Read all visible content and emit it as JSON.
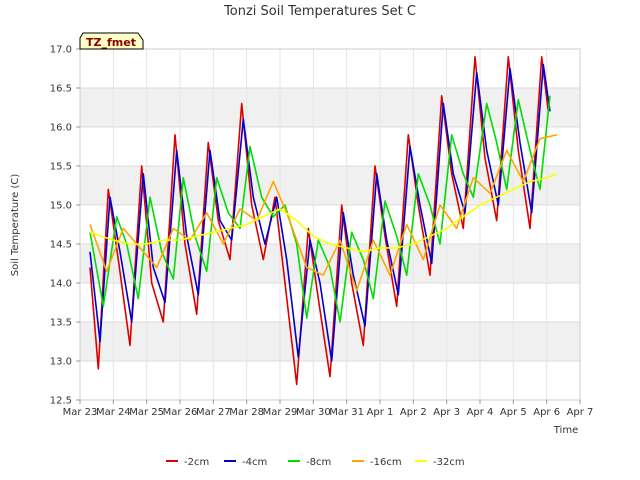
{
  "chart_data": {
    "type": "line",
    "title": "Tonzi Soil Temperatures Set C",
    "xlabel": "Time",
    "ylabel": "Soil Temperature (C)",
    "badge": "TZ_fmet",
    "xlim": [
      0,
      15
    ],
    "ylim": [
      12.5,
      17.0
    ],
    "x_ticks": [
      0,
      1,
      2,
      3,
      4,
      5,
      6,
      7,
      8,
      9,
      10,
      11,
      12,
      13,
      14,
      15
    ],
    "x_tick_labels": [
      "Mar 23",
      "Mar 24",
      "Mar 25",
      "Mar 26",
      "Mar 27",
      "Mar 28",
      "Mar 29",
      "Mar 30",
      "Mar 31",
      "Apr 1",
      "Apr 2",
      "Apr 3",
      "Apr 4",
      "Apr 5",
      "Apr 6",
      "Apr 7"
    ],
    "y_ticks": [
      12.5,
      13.0,
      13.5,
      14.0,
      14.5,
      15.0,
      15.5,
      16.0,
      16.5,
      17.0
    ],
    "y_tick_labels": [
      "12.5",
      "13.0",
      "13.5",
      "14.0",
      "14.5",
      "15.0",
      "15.5",
      "16.0",
      "16.5",
      "17.0"
    ],
    "grid": true,
    "legend_position": "bottom",
    "series": [
      {
        "name": "-2cm",
        "color": "#dd0000",
        "x": [
          0.3,
          0.55,
          0.85,
          1.15,
          1.5,
          1.85,
          2.15,
          2.5,
          2.85,
          3.15,
          3.5,
          3.85,
          4.15,
          4.5,
          4.85,
          5.15,
          5.5,
          5.85,
          6.15,
          6.5,
          6.85,
          7.15,
          7.5,
          7.85,
          8.15,
          8.5,
          8.85,
          9.15,
          9.5,
          9.85,
          10.15,
          10.5,
          10.85,
          11.15,
          11.5,
          11.85,
          12.15,
          12.5,
          12.85,
          13.15,
          13.5,
          13.85,
          14.05
        ],
        "y": [
          14.2,
          12.9,
          15.2,
          14.3,
          13.2,
          15.5,
          14.0,
          13.5,
          15.9,
          14.5,
          13.6,
          15.8,
          14.8,
          14.3,
          16.3,
          15.0,
          14.3,
          15.1,
          14.0,
          12.7,
          14.7,
          13.8,
          12.8,
          15.0,
          14.0,
          13.2,
          15.5,
          14.6,
          13.7,
          15.9,
          15.0,
          14.1,
          16.4,
          15.4,
          14.7,
          16.9,
          15.6,
          14.8,
          16.9,
          15.7,
          14.7,
          16.9,
          16.2
        ]
      },
      {
        "name": "-4cm",
        "color": "#0000cc",
        "x": [
          0.3,
          0.6,
          0.9,
          1.2,
          1.55,
          1.9,
          2.2,
          2.55,
          2.9,
          3.2,
          3.55,
          3.9,
          4.2,
          4.55,
          4.9,
          5.2,
          5.55,
          5.9,
          6.2,
          6.55,
          6.9,
          7.2,
          7.55,
          7.9,
          8.2,
          8.55,
          8.9,
          9.2,
          9.55,
          9.9,
          10.2,
          10.55,
          10.9,
          11.2,
          11.55,
          11.9,
          12.2,
          12.55,
          12.9,
          13.2,
          13.55,
          13.9,
          14.1
        ],
        "y": [
          14.4,
          13.25,
          15.1,
          14.4,
          13.5,
          15.4,
          14.2,
          13.75,
          15.7,
          14.6,
          13.85,
          15.7,
          14.8,
          14.55,
          16.1,
          15.1,
          14.5,
          15.1,
          14.3,
          13.05,
          14.55,
          14.0,
          13.0,
          14.9,
          14.1,
          13.45,
          15.4,
          14.55,
          13.85,
          15.75,
          15.0,
          14.25,
          16.3,
          15.4,
          14.9,
          16.7,
          15.7,
          15.0,
          16.75,
          15.8,
          14.9,
          16.8,
          16.2
        ]
      },
      {
        "name": "-8cm",
        "color": "#00dd00",
        "x": [
          0.3,
          0.7,
          1.1,
          1.4,
          1.75,
          2.1,
          2.45,
          2.8,
          3.1,
          3.45,
          3.8,
          4.1,
          4.45,
          4.8,
          5.1,
          5.45,
          5.8,
          6.15,
          6.5,
          6.8,
          7.15,
          7.5,
          7.8,
          8.15,
          8.5,
          8.8,
          9.15,
          9.5,
          9.8,
          10.15,
          10.5,
          10.8,
          11.15,
          11.5,
          11.8,
          12.2,
          12.5,
          12.8,
          13.15,
          13.5,
          13.8,
          14.1
        ],
        "y": [
          14.65,
          13.7,
          14.85,
          14.5,
          13.8,
          15.1,
          14.4,
          14.05,
          15.35,
          14.6,
          14.15,
          15.35,
          14.9,
          14.7,
          15.75,
          15.1,
          14.85,
          15.0,
          14.5,
          13.55,
          14.55,
          14.2,
          13.5,
          14.65,
          14.3,
          13.8,
          15.05,
          14.6,
          14.1,
          15.4,
          15.0,
          14.5,
          15.9,
          15.4,
          15.1,
          16.3,
          15.8,
          15.2,
          16.35,
          15.7,
          15.2,
          16.4
        ]
      },
      {
        "name": "-16cm",
        "color": "#ffa500",
        "x": [
          0.3,
          0.8,
          1.3,
          1.8,
          2.3,
          2.8,
          3.3,
          3.8,
          4.3,
          4.8,
          5.3,
          5.8,
          6.2,
          6.8,
          7.3,
          7.8,
          8.3,
          8.8,
          9.3,
          9.8,
          10.3,
          10.8,
          11.3,
          11.8,
          12.3,
          12.8,
          13.3,
          13.8,
          14.3
        ],
        "y": [
          14.75,
          14.15,
          14.7,
          14.45,
          14.2,
          14.7,
          14.55,
          14.9,
          14.5,
          14.95,
          14.8,
          15.3,
          14.9,
          14.2,
          14.1,
          14.55,
          13.9,
          14.55,
          14.1,
          14.75,
          14.3,
          15.0,
          14.7,
          15.35,
          15.15,
          15.7,
          15.3,
          15.85,
          15.9
        ]
      },
      {
        "name": "-32cm",
        "color": "#ffff00",
        "x": [
          0.3,
          1.0,
          1.5,
          2.0,
          2.5,
          3.0,
          3.5,
          4.0,
          4.5,
          5.0,
          5.5,
          6.0,
          6.5,
          7.0,
          7.5,
          8.0,
          8.5,
          9.0,
          9.5,
          10.0,
          10.5,
          11.0,
          11.5,
          12.0,
          12.5,
          13.0,
          13.5,
          14.0,
          14.3
        ],
        "y": [
          14.65,
          14.55,
          14.5,
          14.5,
          14.55,
          14.55,
          14.6,
          14.65,
          14.7,
          14.75,
          14.85,
          14.95,
          14.8,
          14.6,
          14.5,
          14.45,
          14.4,
          14.45,
          14.45,
          14.5,
          14.6,
          14.7,
          14.85,
          15.0,
          15.1,
          15.2,
          15.3,
          15.35,
          15.4
        ]
      }
    ]
  }
}
